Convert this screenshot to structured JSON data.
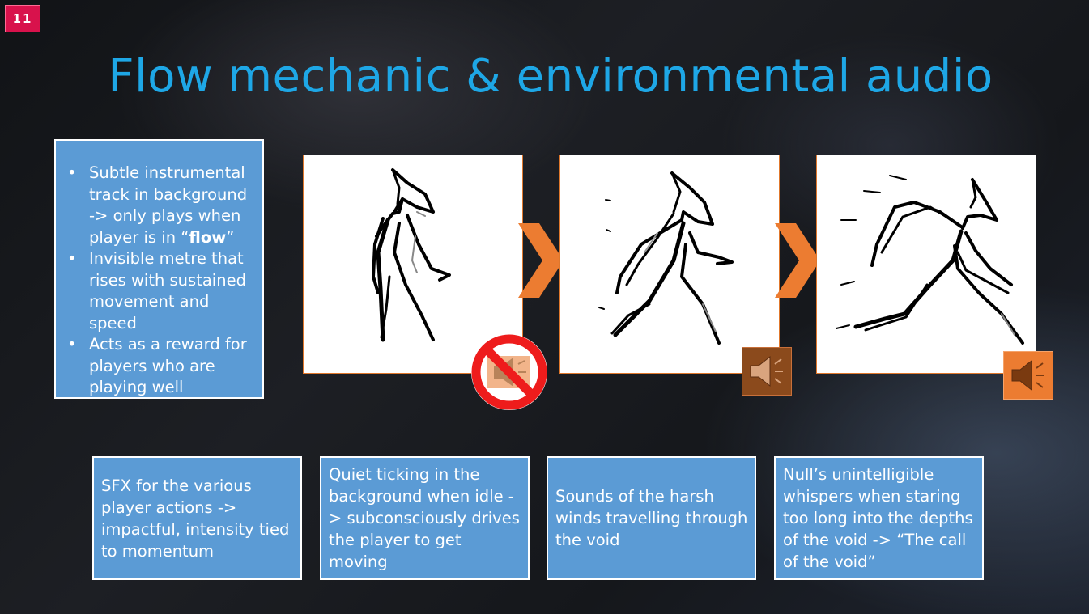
{
  "slide": {
    "number": "11"
  },
  "title": "Flow mechanic & environmental audio",
  "bullets": [
    {
      "text": "Subtle instrumental track in background -> only plays when player is in “",
      "bold": "flow",
      "tail": "”"
    },
    {
      "text": "Invisible metre that rises with sustained movement and speed"
    },
    {
      "text": "Acts as a reward for players who are playing well"
    }
  ],
  "icons": {
    "mute": "no-sound-icon",
    "speaker_dim": "speaker-quiet-icon",
    "speaker_on": "speaker-loud-icon",
    "arrow": "chevron-right-icon"
  },
  "colors": {
    "accent": "#1ea7e6",
    "box": "#5b9bd5",
    "orange": "#ec7c31",
    "badge": "#d8124c"
  },
  "info_boxes": [
    {
      "text": "SFX for the various player actions -> impactful, intensity tied to momentum"
    },
    {
      "text": "Quiet ticking in the background when idle -> subconsciously drives the player to get moving"
    },
    {
      "text": "Sounds of the harsh winds travelling through the void"
    },
    {
      "text": "Null’s unintelligible whispers when staring too long into the depths of the void -> “The call of the void”"
    }
  ]
}
